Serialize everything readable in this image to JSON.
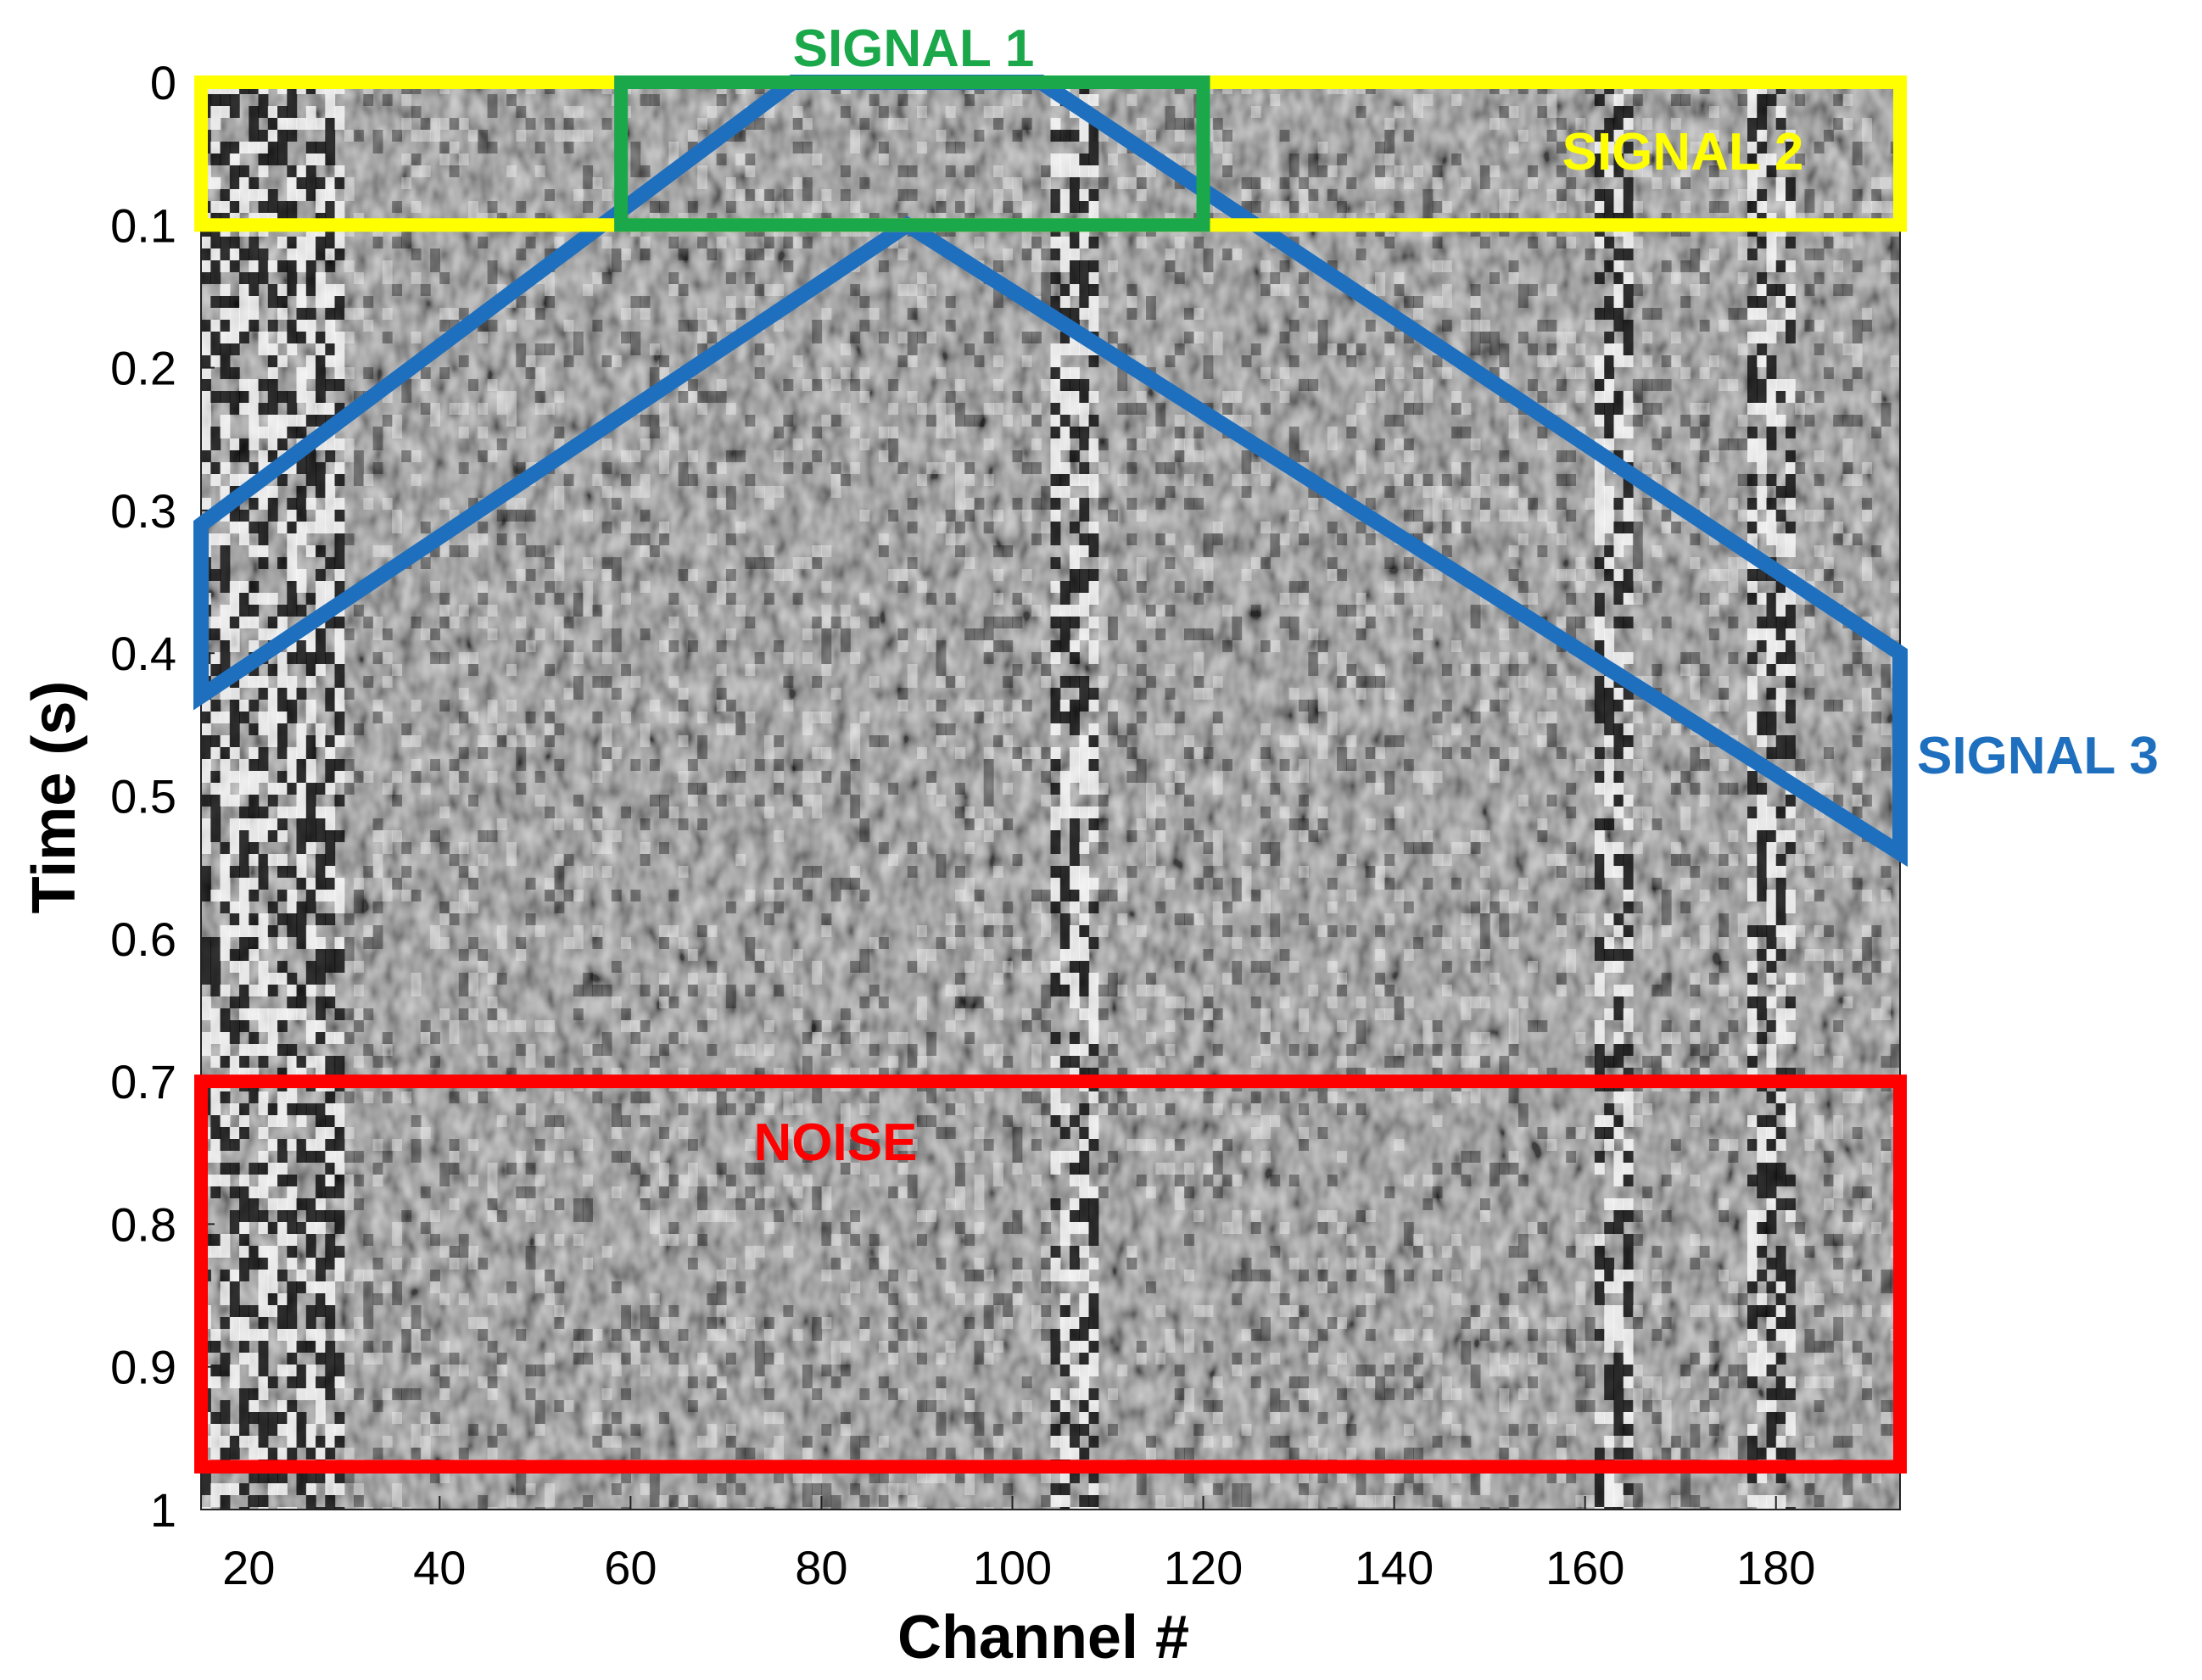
{
  "chart_data": {
    "type": "heatmap",
    "title": "",
    "xlabel": "Channel #",
    "ylabel": "Time (s)",
    "xlim": [
      15,
      193
    ],
    "ylim": [
      0,
      1
    ],
    "y_reversed": true,
    "colormap": "gray",
    "grid": false,
    "x_ticks": [
      20,
      40,
      60,
      80,
      100,
      120,
      140,
      160,
      180
    ],
    "y_ticks": [
      0,
      0.1,
      0.2,
      0.3,
      0.4,
      0.5,
      0.6,
      0.7,
      0.8,
      0.9,
      1
    ],
    "y_tick_labels": [
      "0",
      "0.1",
      "0.2",
      "0.3",
      "0.4",
      "0.5",
      "0.6",
      "0.7",
      "0.8",
      "0.9",
      "1"
    ],
    "annotations": [
      {
        "label": "SIGNAL 1",
        "color": "#1aa84a",
        "shape": "rectangle",
        "channel_range": [
          59,
          120
        ],
        "time_range": [
          0.0,
          0.1
        ]
      },
      {
        "label": "SIGNAL 2",
        "color": "#ffff00",
        "shape": "rectangle",
        "channel_range": [
          15,
          193
        ],
        "time_range": [
          0.0,
          0.1
        ]
      },
      {
        "label": "SIGNAL 3",
        "color": "#1f6fbf",
        "shape": "polygon",
        "vertices": [
          [
            15,
            0.31
          ],
          [
            77,
            0.0
          ],
          [
            103,
            0.0
          ],
          [
            193,
            0.4
          ],
          [
            193,
            0.54
          ],
          [
            89,
            0.1
          ],
          [
            15,
            0.43
          ]
        ]
      },
      {
        "label": "NOISE",
        "color": "#ff0000",
        "shape": "rectangle",
        "channel_range": [
          15,
          193
        ],
        "time_range": [
          0.7,
          0.97
        ]
      }
    ]
  }
}
